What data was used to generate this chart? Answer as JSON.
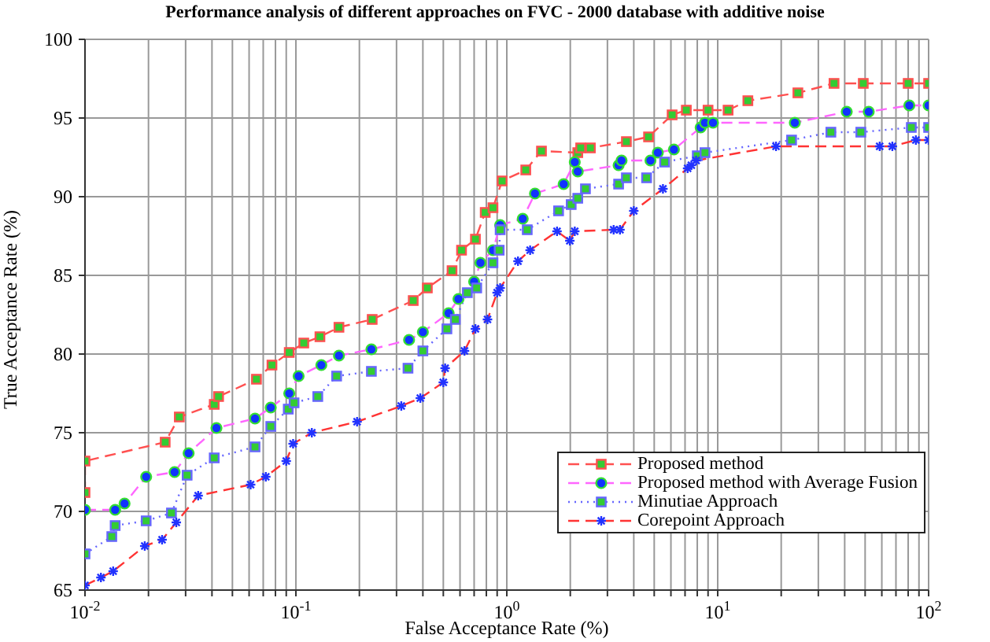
{
  "chart_data": {
    "type": "line",
    "title": "Performance analysis of different approaches on FVC - 2000 database with additive noise",
    "xlabel": "False Acceptance Rate (%)",
    "ylabel": "True Acceptance Rate (%)",
    "log": "x",
    "xlim": [
      0.01,
      100
    ],
    "ylim": [
      65,
      100
    ],
    "xticks": [
      {
        "value": 0.01,
        "label": "10$^{-2}$"
      },
      {
        "value": 0.02,
        "label": null
      },
      {
        "value": 0.03,
        "label": null
      },
      {
        "value": 0.04,
        "label": null
      },
      {
        "value": 0.05,
        "label": null
      },
      {
        "value": 0.06,
        "label": null
      },
      {
        "value": 0.07,
        "label": null
      },
      {
        "value": 0.08,
        "label": null
      },
      {
        "value": 0.09,
        "label": null
      },
      {
        "value": 0.1,
        "label": "10$^{-1}$"
      },
      {
        "value": 0.2,
        "label": null
      },
      {
        "value": 0.3,
        "label": null
      },
      {
        "value": 0.4,
        "label": null
      },
      {
        "value": 0.5,
        "label": null
      },
      {
        "value": 0.6,
        "label": null
      },
      {
        "value": 0.7,
        "label": null
      },
      {
        "value": 0.8,
        "label": null
      },
      {
        "value": 0.9,
        "label": null
      },
      {
        "value": 1,
        "label": "10$^{0}$"
      },
      {
        "value": 2,
        "label": null
      },
      {
        "value": 3,
        "label": null
      },
      {
        "value": 4,
        "label": null
      },
      {
        "value": 5,
        "label": null
      },
      {
        "value": 6,
        "label": null
      },
      {
        "value": 7,
        "label": null
      },
      {
        "value": 8,
        "label": null
      },
      {
        "value": 9,
        "label": null
      },
      {
        "value": 10,
        "label": "10$^{1}$"
      },
      {
        "value": 20,
        "label": null
      },
      {
        "value": 30,
        "label": null
      },
      {
        "value": 40,
        "label": null
      },
      {
        "value": 50,
        "label": null
      },
      {
        "value": 60,
        "label": null
      },
      {
        "value": 70,
        "label": null
      },
      {
        "value": 80,
        "label": null
      },
      {
        "value": 90,
        "label": null
      },
      {
        "value": 100,
        "label": "10$^{2}$"
      }
    ],
    "yticks": [
      65,
      70,
      75,
      80,
      85,
      90,
      95,
      100
    ],
    "grid": true,
    "legend": "bottom right",
    "series": [
      {
        "name": "Proposed method",
        "color": "#ff5050",
        "marker": "square",
        "line_style": "dashed",
        "x": [
          0.01,
          0.01,
          0.024,
          0.028,
          0.041,
          0.043,
          0.065,
          0.077,
          0.093,
          0.109,
          0.13,
          0.16,
          0.23,
          0.36,
          0.42,
          0.55,
          0.61,
          0.71,
          0.79,
          0.86,
          0.95,
          1.23,
          1.46,
          2.17,
          2.24,
          2.49,
          3.69,
          4.7,
          6.08,
          7.1,
          9.0,
          11.2,
          13.9,
          24,
          35.6,
          49,
          80,
          100
        ],
        "values": [
          71.2,
          73.2,
          74.4,
          76.0,
          76.8,
          77.3,
          78.4,
          79.3,
          80.1,
          80.7,
          81.1,
          81.7,
          82.2,
          83.4,
          84.2,
          85.3,
          86.6,
          87.3,
          89.0,
          89.3,
          91.0,
          91.7,
          92.9,
          92.8,
          93.1,
          93.1,
          93.5,
          93.8,
          95.2,
          95.5,
          95.5,
          95.5,
          96.1,
          96.6,
          97.2,
          97.2,
          97.2,
          97.2
        ]
      },
      {
        "name": "Proposed method with Average Fusion",
        "color": "#ff66ff",
        "marker": "circle",
        "line_style": "dashed",
        "x": [
          0.01,
          0.0139,
          0.0154,
          0.0195,
          0.0266,
          0.031,
          0.042,
          0.064,
          0.076,
          0.093,
          0.103,
          0.132,
          0.16,
          0.228,
          0.344,
          0.4,
          0.53,
          0.59,
          0.7,
          0.75,
          0.86,
          0.93,
          1.19,
          1.36,
          1.86,
          2.1,
          2.17,
          3.39,
          3.5,
          4.8,
          5.2,
          6.2,
          8.3,
          8.7,
          9.5,
          23.2,
          40.9,
          52,
          81,
          100
        ],
        "values": [
          70.1,
          70.1,
          70.5,
          72.2,
          72.5,
          73.7,
          75.3,
          75.9,
          76.6,
          77.5,
          78.6,
          79.3,
          79.9,
          80.3,
          80.9,
          81.4,
          82.6,
          83.5,
          84.6,
          85.8,
          86.6,
          88.2,
          88.6,
          90.2,
          90.8,
          92.2,
          91.6,
          92.0,
          92.3,
          92.3,
          92.8,
          93.0,
          94.4,
          94.7,
          94.7,
          94.7,
          95.4,
          95.4,
          95.8,
          95.8
        ]
      },
      {
        "name": "Minutiae Approach",
        "color": "#6666ff",
        "marker": "square",
        "line_style": "dotted",
        "x": [
          0.01,
          0.0134,
          0.0139,
          0.0195,
          0.0257,
          0.0305,
          0.041,
          0.064,
          0.076,
          0.092,
          0.098,
          0.127,
          0.156,
          0.228,
          0.34,
          0.4,
          0.52,
          0.57,
          0.65,
          0.72,
          0.86,
          0.92,
          0.93,
          1.25,
          1.76,
          2.02,
          2.17,
          2.36,
          3.39,
          3.69,
          4.6,
          5.6,
          8.0,
          8.7,
          22.4,
          34.4,
          47.7,
          82.8,
          100
        ],
        "values": [
          67.3,
          68.4,
          69.1,
          69.4,
          69.9,
          72.3,
          73.4,
          74.1,
          75.4,
          76.5,
          76.9,
          77.3,
          78.6,
          78.9,
          79.1,
          80.2,
          81.6,
          82.2,
          83.9,
          84.2,
          85.8,
          86.6,
          87.9,
          87.9,
          89.1,
          89.5,
          89.9,
          90.5,
          90.8,
          91.2,
          91.2,
          92.2,
          92.6,
          92.8,
          93.6,
          94.1,
          94.1,
          94.4,
          94.4
        ]
      },
      {
        "name": "Corepoint Approach",
        "color": "#ff3333",
        "marker": "cross",
        "line_style": "dashed",
        "x": [
          0.01,
          0.0119,
          0.0136,
          0.0192,
          0.0232,
          0.0271,
          0.0344,
          0.061,
          0.072,
          0.09,
          0.097,
          0.119,
          0.195,
          0.316,
          0.389,
          0.5,
          0.51,
          0.63,
          0.71,
          0.81,
          0.9,
          0.93,
          1.13,
          1.29,
          1.73,
          1.99,
          2.1,
          3.21,
          3.44,
          4.0,
          5.5,
          7.2,
          7.5,
          7.9,
          18.9,
          58.6,
          67.3,
          87,
          100
        ],
        "values": [
          65.3,
          65.8,
          66.2,
          67.8,
          68.2,
          69.3,
          71.0,
          71.7,
          72.2,
          73.2,
          74.3,
          75.0,
          75.7,
          76.7,
          77.2,
          78.2,
          79.1,
          80.2,
          81.6,
          82.2,
          83.9,
          84.2,
          85.9,
          86.6,
          87.8,
          87.2,
          87.8,
          87.9,
          87.9,
          89.1,
          90.5,
          91.8,
          92.0,
          92.3,
          93.2,
          93.2,
          93.2,
          93.6,
          93.6
        ]
      }
    ]
  }
}
